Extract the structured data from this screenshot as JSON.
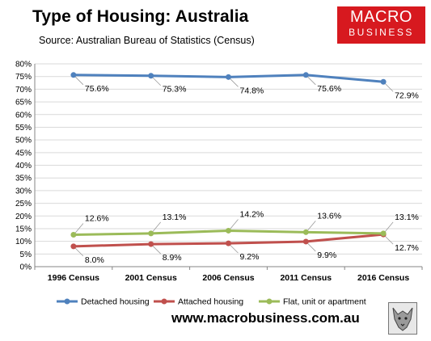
{
  "header": {
    "title": "Type of Housing: Australia",
    "source": "Source: Australian Bureau of Statistics (Census)"
  },
  "logo": {
    "line1": "MACRO",
    "line2": "BUSINESS",
    "color": "#d7191f"
  },
  "footer": {
    "website": "www.macrobusiness.com.au"
  },
  "badge": {
    "icon": "wolf-emblem-icon"
  },
  "chart_data": {
    "type": "line",
    "categories": [
      "1996 Census",
      "2001 Census",
      "2006 Census",
      "2011 Census",
      "2016 Census"
    ],
    "ylim": [
      0,
      80
    ],
    "yticks": [
      "0%",
      "5%",
      "10%",
      "15%",
      "20%",
      "25%",
      "30%",
      "35%",
      "40%",
      "45%",
      "50%",
      "55%",
      "60%",
      "65%",
      "70%",
      "75%",
      "80%"
    ],
    "grid": true,
    "legend_position": "bottom",
    "series": [
      {
        "name": "Detached housing",
        "color": "#4f81bd",
        "values": [
          75.6,
          75.3,
          74.8,
          75.6,
          72.9
        ],
        "labels": [
          "75.6%",
          "75.3%",
          "74.8%",
          "75.6%",
          "72.9%"
        ],
        "label_position": "below"
      },
      {
        "name": "Attached housing",
        "color": "#c0504d",
        "values": [
          8.0,
          8.9,
          9.2,
          9.9,
          12.7
        ],
        "labels": [
          "8.0%",
          "8.9%",
          "9.2%",
          "9.9%",
          "12.7%"
        ],
        "label_position": "below"
      },
      {
        "name": "Flat, unit or apartment",
        "color": "#9bbb59",
        "values": [
          12.6,
          13.1,
          14.2,
          13.6,
          13.1
        ],
        "labels": [
          "12.6%",
          "13.1%",
          "14.2%",
          "13.6%",
          "13.1%"
        ],
        "label_position": "above"
      }
    ]
  }
}
